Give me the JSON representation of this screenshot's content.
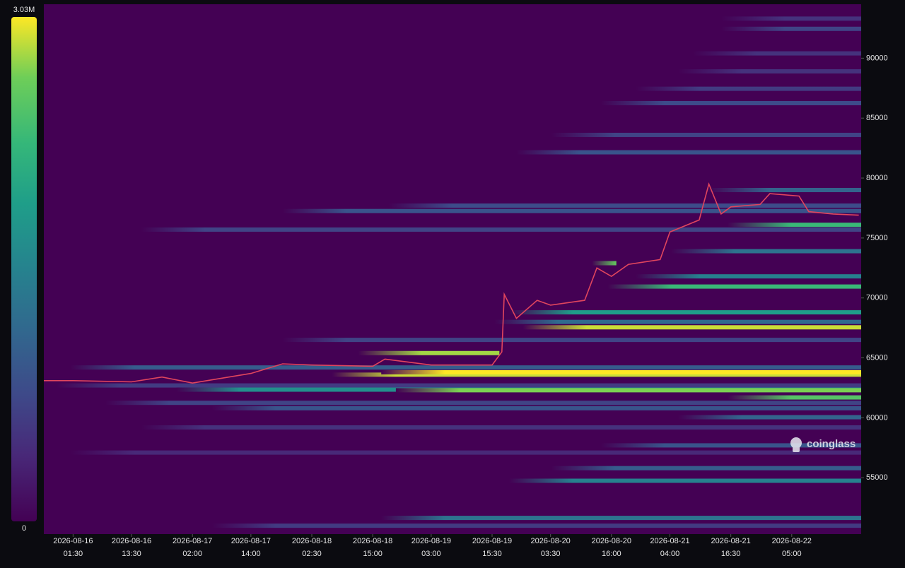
{
  "chart_data": {
    "type": "heatmap",
    "watermark": "coinglass",
    "ylim": [
      50300,
      94500
    ],
    "yticks": [
      55000,
      60000,
      65000,
      70000,
      75000,
      80000,
      85000,
      90000
    ],
    "xlim": [
      "2026-08-15 19:30",
      "2026-08-22 19:15"
    ],
    "xticks": [
      {
        "value": "2026-08-16 01:30",
        "label": [
          "2026-08-16",
          "01:30"
        ]
      },
      {
        "value": "2026-08-16 13:30",
        "label": [
          "2026-08-16",
          "13:30"
        ]
      },
      {
        "value": "2026-08-17 02:00",
        "label": [
          "2026-08-17",
          "02:00"
        ]
      },
      {
        "value": "2026-08-17 14:00",
        "label": [
          "2026-08-17",
          "14:00"
        ]
      },
      {
        "value": "2026-08-18 02:30",
        "label": [
          "2026-08-18",
          "02:30"
        ]
      },
      {
        "value": "2026-08-18 15:00",
        "label": [
          "2026-08-18",
          "15:00"
        ]
      },
      {
        "value": "2026-08-19 03:00",
        "label": [
          "2026-08-19",
          "03:00"
        ]
      },
      {
        "value": "2026-08-19 15:30",
        "label": [
          "2026-08-19",
          "15:30"
        ]
      },
      {
        "value": "2026-08-20 03:30",
        "label": [
          "2026-08-20",
          "03:30"
        ]
      },
      {
        "value": "2026-08-20 16:00",
        "label": [
          "2026-08-20",
          "16:00"
        ]
      },
      {
        "value": "2026-08-21 04:00",
        "label": [
          "2026-08-21",
          "04:00"
        ]
      },
      {
        "value": "2026-08-21 16:30",
        "label": [
          "2026-08-21",
          "16:30"
        ]
      },
      {
        "value": "2026-08-22 05:00",
        "label": [
          "2026-08-22",
          "05:00"
        ]
      }
    ],
    "colorbar": {
      "min": 0,
      "max": {
        "value": 3030000,
        "label": "3.03M"
      }
    },
    "bands": [
      {
        "price": 75700,
        "start": "2026-08-16 15:30",
        "value": 700000
      },
      {
        "price": 77250,
        "start": "2026-08-17 20:30",
        "value": 900000
      },
      {
        "price": 77700,
        "start": "2026-08-18 18:15",
        "value": 800000
      },
      {
        "price": 82150,
        "start": "2026-08-19 20:30",
        "value": 900000
      },
      {
        "price": 83600,
        "start": "2026-08-20 03:40",
        "value": 700000
      },
      {
        "price": 86250,
        "start": "2026-08-20 13:50",
        "value": 800000
      },
      {
        "price": 87450,
        "start": "2026-08-20 21:00",
        "value": 600000
      },
      {
        "price": 88900,
        "start": "2026-08-21 05:40",
        "value": 500000
      },
      {
        "price": 90400,
        "start": "2026-08-21 08:40",
        "value": 500000
      },
      {
        "price": 92450,
        "start": "2026-08-21 14:30",
        "value": 700000
      },
      {
        "price": 93300,
        "start": "2026-08-21 14:30",
        "value": 500000
      },
      {
        "price": 51000,
        "start": "2026-08-17 06:00",
        "value": 600000
      },
      {
        "price": 51650,
        "start": "2026-08-18 16:45",
        "value": 1300000
      },
      {
        "price": 54750,
        "start": "2026-08-19 19:00",
        "value": 1500000
      },
      {
        "price": 55800,
        "start": "2026-08-20 03:40",
        "value": 1000000
      },
      {
        "price": 57100,
        "start": "2026-08-16 01:00",
        "value": 400000
      },
      {
        "price": 57700,
        "start": "2026-08-20 13:50",
        "value": 900000
      },
      {
        "price": 59200,
        "start": "2026-08-16 15:30",
        "value": 500000
      },
      {
        "price": 60050,
        "start": "2026-08-21 05:40",
        "value": 1100000
      },
      {
        "price": 60800,
        "start": "2026-08-17 06:00",
        "value": 900000
      },
      {
        "price": 61250,
        "start": "2026-08-16 08:10",
        "value": 700000
      },
      {
        "price": 61700,
        "start": "2026-08-21 15:50",
        "value": 2500000
      },
      {
        "price": 62700,
        "start": "2026-08-15 22:00",
        "value": 600000
      },
      {
        "price": 62350,
        "start": "2026-08-16 22:45",
        "value": 1700000
      },
      {
        "price": 62300,
        "start": "2026-08-18 19:45",
        "value": 2700000
      },
      {
        "price": 64200,
        "start": "2026-08-16 01:00",
        "value": 1000000
      },
      {
        "price": 63600,
        "start": "2026-08-18 06:40",
        "value": 2900000
      },
      {
        "price": 63800,
        "start": "2026-08-18 16:45",
        "value": 3030000
      },
      {
        "price": 65400,
        "start": "2026-08-18 12:00",
        "end": "2026-08-19 17:00",
        "value": 2800000
      },
      {
        "price": 66500,
        "start": "2026-08-17 20:30",
        "value": 700000
      },
      {
        "price": 68000,
        "start": "2026-08-19 16:00",
        "value": 1200000
      },
      {
        "price": 68800,
        "start": "2026-08-19 19:00",
        "value": 1900000
      },
      {
        "price": 67550,
        "start": "2026-08-19 21:50",
        "value": 2900000
      },
      {
        "price": 71800,
        "start": "2026-08-20 21:00",
        "value": 1500000
      },
      {
        "price": 70950,
        "start": "2026-08-20 15:15",
        "value": 2300000
      },
      {
        "price": 72900,
        "start": "2026-08-20 12:00",
        "end": "2026-08-20 17:00",
        "value": 2600000
      },
      {
        "price": 73900,
        "start": "2026-08-21 04:15",
        "value": 1300000
      },
      {
        "price": 76100,
        "start": "2026-08-21 15:50",
        "value": 2300000
      },
      {
        "price": 79000,
        "start": "2026-08-21 11:30",
        "value": 1100000
      }
    ],
    "price": {
      "color": "#e0455d",
      "x": [
        "2026-08-15 19:30",
        "2026-08-16 01:30",
        "2026-08-16 13:30",
        "2026-08-16 19:45",
        "2026-08-17 02:00",
        "2026-08-17 14:00",
        "2026-08-17 20:30",
        "2026-08-18 02:30",
        "2026-08-18 15:00",
        "2026-08-18 17:30",
        "2026-08-19 03:00",
        "2026-08-19 15:30",
        "2026-08-19 17:30",
        "2026-08-19 18:00",
        "2026-08-19 20:30",
        "2026-08-20 00:45",
        "2026-08-20 03:30",
        "2026-08-20 10:30",
        "2026-08-20 13:00",
        "2026-08-20 16:00",
        "2026-08-20 19:30",
        "2026-08-21 02:00",
        "2026-08-21 04:00",
        "2026-08-21 10:00",
        "2026-08-21 12:00",
        "2026-08-21 14:30",
        "2026-08-21 16:30",
        "2026-08-21 22:30",
        "2026-08-22 00:30",
        "2026-08-22 06:30",
        "2026-08-22 08:30",
        "2026-08-22 13:30",
        "2026-08-22 18:45"
      ],
      "values": [
        63100,
        63100,
        63000,
        63400,
        62900,
        63700,
        64500,
        64400,
        64300,
        64900,
        64400,
        64400,
        65500,
        70300,
        68300,
        69800,
        69400,
        69800,
        72500,
        71800,
        72800,
        73200,
        75500,
        76500,
        79500,
        77000,
        77600,
        77800,
        78700,
        78500,
        77200,
        77000,
        76900
      ]
    }
  }
}
